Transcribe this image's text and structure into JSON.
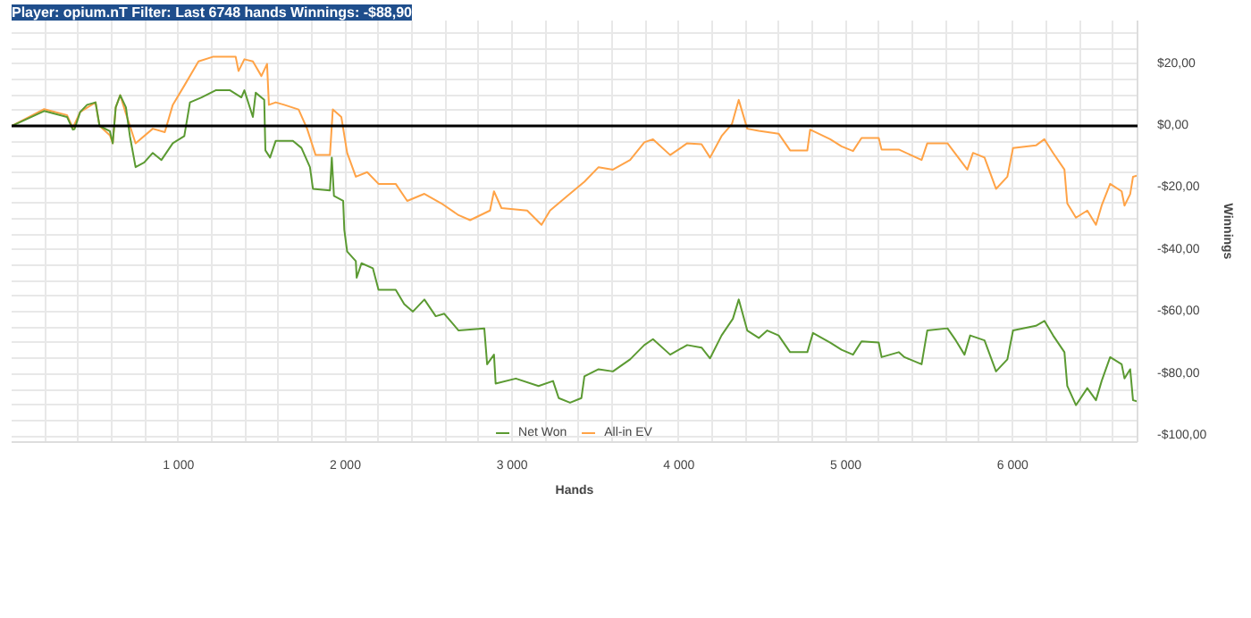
{
  "chart_data": {
    "type": "line",
    "title": "Player: opium.nT Filter: Last 6748 hands Winnings: -$88,90",
    "xlabel": "Hands",
    "ylabel": "Winnings",
    "xlim": [
      0,
      6748
    ],
    "ylim": [
      -102,
      34
    ],
    "xticks": [
      {
        "value": 200,
        "label": null
      },
      {
        "value": 400,
        "label": null
      },
      {
        "value": 600,
        "label": null
      },
      {
        "value": 800,
        "label": null
      },
      {
        "value": 1000,
        "label": "1 000"
      },
      {
        "value": 1200,
        "label": null
      },
      {
        "value": 1400,
        "label": null
      },
      {
        "value": 1600,
        "label": null
      },
      {
        "value": 1800,
        "label": null
      },
      {
        "value": 2000,
        "label": "2 000"
      },
      {
        "value": 2200,
        "label": null
      },
      {
        "value": 2400,
        "label": null
      },
      {
        "value": 2600,
        "label": null
      },
      {
        "value": 2800,
        "label": null
      },
      {
        "value": 3000,
        "label": "3 000"
      },
      {
        "value": 3200,
        "label": null
      },
      {
        "value": 3400,
        "label": null
      },
      {
        "value": 3600,
        "label": null
      },
      {
        "value": 3800,
        "label": null
      },
      {
        "value": 4000,
        "label": "4 000"
      },
      {
        "value": 4200,
        "label": null
      },
      {
        "value": 4400,
        "label": null
      },
      {
        "value": 4600,
        "label": null
      },
      {
        "value": 4800,
        "label": null
      },
      {
        "value": 5000,
        "label": "5 000"
      },
      {
        "value": 5200,
        "label": null
      },
      {
        "value": 5400,
        "label": null
      },
      {
        "value": 5600,
        "label": null
      },
      {
        "value": 5800,
        "label": null
      },
      {
        "value": 6000,
        "label": "6 000"
      },
      {
        "value": 6200,
        "label": null
      },
      {
        "value": 6400,
        "label": null
      },
      {
        "value": 6600,
        "label": null
      }
    ],
    "yticks": [
      {
        "value": -100,
        "label": "-$100,00"
      },
      {
        "value": -95,
        "label": null
      },
      {
        "value": -90,
        "label": null
      },
      {
        "value": -85,
        "label": null
      },
      {
        "value": -80,
        "label": "-$80,00"
      },
      {
        "value": -75,
        "label": null
      },
      {
        "value": -70,
        "label": null
      },
      {
        "value": -65,
        "label": null
      },
      {
        "value": -60,
        "label": "-$60,00"
      },
      {
        "value": -55,
        "label": null
      },
      {
        "value": -50,
        "label": null
      },
      {
        "value": -45,
        "label": null
      },
      {
        "value": -40,
        "label": "-$40,00"
      },
      {
        "value": -35,
        "label": null
      },
      {
        "value": -30,
        "label": null
      },
      {
        "value": -25,
        "label": null
      },
      {
        "value": -20,
        "label": "-$20,00"
      },
      {
        "value": -15,
        "label": null
      },
      {
        "value": -10,
        "label": null
      },
      {
        "value": -5,
        "label": null
      },
      {
        "value": 0,
        "label": "$0,00"
      },
      {
        "value": 5,
        "label": null
      },
      {
        "value": 10,
        "label": null
      },
      {
        "value": 15,
        "label": null
      },
      {
        "value": 20,
        "label": "$20,00"
      },
      {
        "value": 25,
        "label": null
      },
      {
        "value": 30,
        "label": null
      }
    ],
    "grid": true,
    "legend": "bottom",
    "marker": "none",
    "line_style": "solid",
    "ref_lines": [
      {
        "axis": "y",
        "value": 0,
        "color": "#000000"
      }
    ],
    "series": [
      {
        "name": "Net Won",
        "color": "#5b9a32",
        "x": [
          0,
          195,
          332,
          367,
          377,
          411,
          452,
          503,
          527,
          589,
          606,
          624,
          651,
          685,
          709,
          743,
          795,
          846,
          898,
          966,
          1035,
          1069,
          1138,
          1223,
          1309,
          1377,
          1395,
          1446,
          1463,
          1514,
          1521,
          1549,
          1583,
          1686,
          1737,
          1788,
          1806,
          1908,
          1919,
          1932,
          1987,
          1994,
          2011,
          2063,
          2068,
          2097,
          2165,
          2199,
          2302,
          2353,
          2405,
          2474,
          2542,
          2593,
          2679,
          2833,
          2850,
          2891,
          2901,
          3022,
          3158,
          3245,
          3279,
          3347,
          3415,
          3433,
          3518,
          3604,
          3707,
          3792,
          3844,
          3947,
          4049,
          4135,
          4186,
          4255,
          4323,
          4358,
          4409,
          4478,
          4529,
          4597,
          4666,
          4769,
          4803,
          4906,
          4974,
          5043,
          5094,
          5197,
          5214,
          5317,
          5351,
          5454,
          5488,
          5609,
          5659,
          5711,
          5745,
          5831,
          5900,
          5968,
          6002,
          6139,
          6190,
          6242,
          6310,
          6327,
          6379,
          6447,
          6499,
          6533,
          6584,
          6653,
          6670,
          6704,
          6721,
          6748
        ],
        "values": [
          0,
          4.8,
          2.9,
          -1.2,
          -1,
          4.5,
          6.8,
          7.6,
          0,
          -1.7,
          -5.6,
          6,
          9.9,
          6,
          -3.3,
          -13.3,
          -11.8,
          -8.7,
          -11,
          -5.6,
          -3.3,
          7.6,
          9.2,
          11.5,
          11.5,
          9.2,
          11.5,
          2.9,
          10.7,
          8.4,
          -7.9,
          -10.2,
          -4.8,
          -4.8,
          -7.1,
          -13.3,
          -20.3,
          -20.8,
          -10.2,
          -22.6,
          -24.2,
          -33.5,
          -40.5,
          -43.6,
          -49,
          -44.3,
          -45.9,
          -52.9,
          -52.9,
          -57.5,
          -59.9,
          -56,
          -61.4,
          -60.6,
          -66,
          -65.3,
          -76.9,
          -73.8,
          -83.1,
          -81.5,
          -83.9,
          -82.3,
          -87.8,
          -89.3,
          -87.8,
          -80.8,
          -78.5,
          -79.2,
          -75.3,
          -70.7,
          -68.8,
          -73.8,
          -70.7,
          -71.5,
          -75,
          -67.6,
          -62.2,
          -56,
          -66,
          -68.4,
          -66,
          -67.6,
          -73,
          -73,
          -66.8,
          -69.9,
          -72.2,
          -73.8,
          -69.5,
          -69.9,
          -74.6,
          -73,
          -74.6,
          -76.9,
          -66,
          -65.3,
          -69.2,
          -73.8,
          -67.6,
          -69.2,
          -79.2,
          -75.3,
          -66,
          -64.5,
          -62.9,
          -67.6,
          -73,
          -83.9,
          -90.1,
          -84.6,
          -88.5,
          -82.3,
          -74.6,
          -76.9,
          -81.5,
          -78.5,
          -88.5,
          -88.9
        ]
      },
      {
        "name": "All-in EV",
        "color": "#ffa347",
        "x": [
          0,
          195,
          332,
          367,
          411,
          503,
          527,
          589,
          606,
          624,
          651,
          685,
          743,
          846,
          918,
          966,
          1035,
          1120,
          1206,
          1343,
          1360,
          1395,
          1446,
          1497,
          1531,
          1542,
          1583,
          1634,
          1720,
          1771,
          1822,
          1908,
          1925,
          1976,
          2011,
          2063,
          2131,
          2199,
          2302,
          2371,
          2474,
          2576,
          2679,
          2748,
          2867,
          2891,
          2936,
          3090,
          3176,
          3227,
          3330,
          3433,
          3518,
          3604,
          3707,
          3792,
          3844,
          3947,
          4049,
          4135,
          4186,
          4255,
          4317,
          4358,
          4409,
          4478,
          4597,
          4666,
          4769,
          4786,
          4906,
          4974,
          5043,
          5094,
          5197,
          5214,
          5317,
          5454,
          5488,
          5609,
          5728,
          5762,
          5831,
          5900,
          5968,
          6002,
          6139,
          6190,
          6242,
          6310,
          6327,
          6379,
          6447,
          6499,
          6533,
          6584,
          6653,
          6670,
          6704,
          6721,
          6748
        ],
        "values": [
          0,
          5.4,
          3.5,
          -0.6,
          4.5,
          7.6,
          0,
          -3,
          -5.6,
          6,
          9.9,
          4,
          -5.6,
          -0.9,
          -2,
          6.8,
          13,
          20.8,
          22.3,
          22.3,
          17.7,
          21.5,
          20.8,
          16.1,
          20,
          6.8,
          7.6,
          6.8,
          5.3,
          -0.9,
          -9.4,
          -9.4,
          5.3,
          2.9,
          -8.7,
          -16.4,
          -14.9,
          -18.7,
          -18.7,
          -24.2,
          -21.9,
          -25,
          -28.8,
          -30.4,
          -27.3,
          -21.1,
          -26.5,
          -27.3,
          -31.9,
          -27.3,
          -22.6,
          -18,
          -13.3,
          -14.1,
          -11,
          -5.3,
          -4.3,
          -9.4,
          -5.6,
          -5.9,
          -10.2,
          -3.3,
          0.6,
          8.4,
          -0.9,
          -1.6,
          -2.5,
          -7.9,
          -7.9,
          -1.2,
          -4.3,
          -6.6,
          -8.1,
          -3.9,
          -3.9,
          -7.6,
          -7.6,
          -11,
          -5.6,
          -5.6,
          -14.1,
          -8.7,
          -10.2,
          -20.3,
          -16.4,
          -7.1,
          -6.3,
          -4.3,
          -8.7,
          -14.1,
          -25,
          -29.6,
          -27.3,
          -31.9,
          -25.7,
          -18.7,
          -21.1,
          -25.7,
          -22,
          -16.4,
          -16
        ]
      }
    ]
  }
}
